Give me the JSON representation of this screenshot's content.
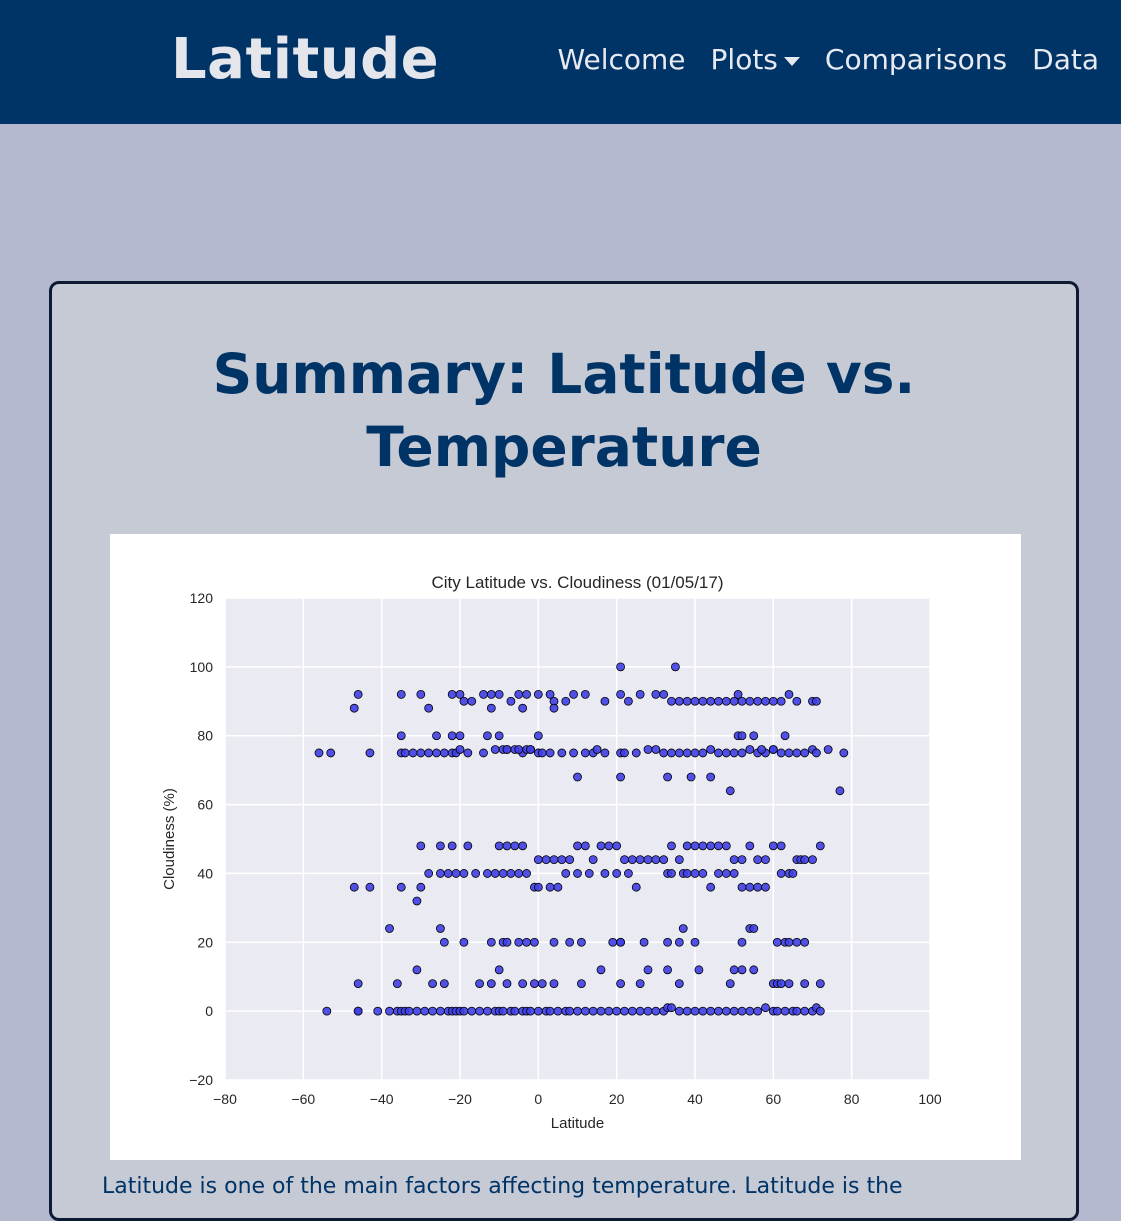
{
  "navbar": {
    "brand": "Latitude",
    "items": [
      {
        "label": "Welcome"
      },
      {
        "label": "Plots",
        "dropdown": true
      },
      {
        "label": "Comparisons"
      },
      {
        "label": "Data"
      }
    ]
  },
  "card": {
    "title": "Summary: Latitude vs.\nTemperature",
    "body_text": "Latitude is one of the main factors affecting temperature. Latitude is the"
  },
  "colors": {
    "navbar": "#003366",
    "page_background": "#b4b9d0",
    "card_background": "#c6cad4",
    "title": "#003366",
    "plot_background": "#eaeaf2",
    "marker_fill": "#3f3fe6"
  },
  "chart_data": {
    "type": "scatter",
    "title": "City Latitude vs. Cloudiness (01/05/17)",
    "xlabel": "Latitude",
    "ylabel": "Cloudiness (%)",
    "xlim": [
      -80,
      100
    ],
    "ylim": [
      -20,
      120
    ],
    "xticks": [
      -80,
      -60,
      -40,
      -20,
      0,
      20,
      40,
      60,
      80,
      100
    ],
    "yticks": [
      -20,
      0,
      20,
      40,
      60,
      80,
      100,
      120
    ],
    "grid": true,
    "x": [
      -54,
      -46,
      -46,
      -41,
      -38,
      -36,
      -35,
      -34,
      -33,
      -31,
      -29,
      -27,
      -25,
      -23,
      -22,
      -21,
      -20,
      -19,
      -17,
      -15,
      -13,
      -11,
      -10,
      -9,
      -7,
      -6,
      -4,
      -3,
      -2,
      0,
      2,
      3,
      5,
      7,
      8,
      10,
      12,
      14,
      16,
      18,
      20,
      22,
      24,
      26,
      28,
      30,
      32,
      33,
      34,
      36,
      38,
      40,
      42,
      44,
      46,
      48,
      50,
      52,
      54,
      56,
      58,
      60,
      61,
      63,
      65,
      66,
      68,
      70,
      71,
      72,
      -56,
      -53,
      -43,
      -35,
      -34,
      -32,
      -30,
      -28,
      -26,
      -24,
      -22,
      -21,
      -20,
      -18,
      -14,
      -11,
      -9,
      -8,
      -4,
      -2,
      0,
      1,
      3,
      6,
      9,
      12,
      14,
      15,
      17,
      21,
      22,
      25,
      28,
      30,
      32,
      34,
      36,
      38,
      40,
      42,
      44,
      46,
      48,
      50,
      52,
      54,
      56,
      58,
      60,
      62,
      64,
      66,
      68,
      70,
      71,
      74,
      78,
      -46,
      -35,
      -30,
      -22,
      -20,
      -19,
      -17,
      -14,
      -12,
      -10,
      -7,
      -5,
      -3,
      0,
      3,
      4,
      7,
      9,
      12,
      17,
      21,
      23,
      26,
      30,
      32,
      34,
      36,
      38,
      40,
      42,
      44,
      46,
      48,
      50,
      51,
      52,
      54,
      56,
      58,
      60,
      62,
      64,
      66,
      70,
      71,
      -35,
      -26,
      -22,
      -20,
      -13,
      -10,
      -8,
      -6,
      -5,
      -3,
      -2,
      0,
      10,
      21,
      33,
      39,
      44,
      49,
      51,
      52,
      55,
      57,
      60,
      63,
      77,
      -47,
      -43,
      -35,
      -30,
      -28,
      -25,
      -23,
      -21,
      -19,
      -16,
      -13,
      -11,
      -9,
      -7,
      -5,
      -3,
      -1,
      0,
      3,
      5,
      7,
      10,
      13,
      17,
      20,
      23,
      25,
      33,
      34,
      37,
      38,
      40,
      42,
      44,
      46,
      48,
      50,
      52,
      54,
      56,
      58,
      62,
      64,
      65,
      66,
      67,
      68,
      70,
      72,
      -38,
      -31,
      -25,
      -24,
      -19,
      -12,
      -9,
      -8,
      -5,
      -3,
      -1,
      4,
      8,
      11,
      19,
      21,
      21,
      27,
      33,
      36,
      37,
      40,
      52,
      54,
      55,
      61,
      63,
      64,
      66,
      68,
      -46,
      -36,
      -31,
      -27,
      -24,
      -15,
      -12,
      -10,
      -8,
      -4,
      -1,
      1,
      4,
      11,
      16,
      21,
      26,
      28,
      33,
      36,
      41,
      49,
      50,
      52,
      55,
      60,
      61,
      62,
      64,
      68,
      72,
      -30,
      -25,
      -22,
      -18,
      -10,
      -8,
      -6,
      -4,
      0,
      2,
      4,
      6,
      8,
      10,
      12,
      14,
      16,
      18,
      20,
      22,
      24,
      26,
      28,
      30,
      32,
      34,
      36,
      38,
      40,
      42,
      44,
      46,
      48,
      50,
      52,
      54,
      56,
      58,
      60,
      62,
      -47,
      -28,
      -12,
      -4,
      4,
      21,
      35
    ],
    "y": [
      0,
      0,
      0,
      0,
      0,
      0,
      0,
      0,
      0,
      0,
      0,
      0,
      0,
      0,
      0,
      0,
      0,
      0,
      0,
      0,
      0,
      0,
      0,
      0,
      0,
      0,
      0,
      0,
      0,
      0,
      0,
      0,
      0,
      0,
      0,
      0,
      0,
      0,
      0,
      0,
      0,
      0,
      0,
      0,
      0,
      0,
      0,
      1,
      1,
      0,
      0,
      0,
      0,
      0,
      0,
      0,
      0,
      0,
      0,
      0,
      1,
      0,
      0,
      0,
      0,
      0,
      0,
      0,
      1,
      0,
      75,
      75,
      75,
      75,
      75,
      75,
      75,
      75,
      75,
      75,
      75,
      75,
      76,
      75,
      75,
      76,
      76,
      76,
      75,
      76,
      75,
      75,
      75,
      75,
      75,
      75,
      75,
      76,
      75,
      75,
      75,
      75,
      76,
      76,
      75,
      75,
      75,
      75,
      75,
      75,
      76,
      75,
      75,
      75,
      75,
      76,
      75,
      75,
      76,
      75,
      75,
      75,
      75,
      76,
      75,
      76,
      75,
      92,
      92,
      92,
      92,
      92,
      90,
      90,
      92,
      92,
      92,
      90,
      92,
      92,
      92,
      92,
      90,
      90,
      92,
      92,
      90,
      92,
      90,
      92,
      92,
      92,
      90,
      90,
      90,
      90,
      90,
      90,
      90,
      90,
      90,
      92,
      90,
      90,
      90,
      90,
      90,
      90,
      92,
      90,
      90,
      90,
      80,
      80,
      80,
      80,
      80,
      80,
      76,
      76,
      76,
      76,
      76,
      80,
      68,
      68,
      68,
      68,
      68,
      64,
      80,
      80,
      80,
      76,
      76,
      80,
      64,
      36,
      36,
      36,
      36,
      40,
      40,
      40,
      40,
      40,
      40,
      40,
      40,
      40,
      40,
      40,
      40,
      36,
      36,
      36,
      36,
      40,
      40,
      40,
      40,
      40,
      40,
      36,
      40,
      40,
      40,
      40,
      40,
      40,
      36,
      40,
      40,
      40,
      36,
      36,
      36,
      36,
      40,
      40,
      40,
      44,
      44,
      44,
      44,
      48,
      24,
      32,
      24,
      20,
      20,
      20,
      20,
      20,
      20,
      20,
      20,
      20,
      20,
      20,
      20,
      20,
      20,
      20,
      20,
      20,
      24,
      20,
      20,
      24,
      24,
      20,
      20,
      20,
      20,
      20,
      8,
      8,
      12,
      8,
      8,
      8,
      8,
      12,
      8,
      8,
      8,
      8,
      8,
      8,
      12,
      8,
      8,
      12,
      12,
      8,
      12,
      8,
      12,
      12,
      12,
      8,
      8,
      8,
      8,
      8,
      8,
      48,
      48,
      48,
      48,
      48,
      48,
      48,
      48,
      44,
      44,
      44,
      44,
      44,
      48,
      48,
      44,
      48,
      48,
      48,
      44,
      44,
      44,
      44,
      44,
      44,
      48,
      44,
      48,
      48,
      48,
      48,
      48,
      48,
      44,
      44,
      48,
      44,
      44,
      48,
      48,
      88,
      88,
      88,
      88,
      88,
      100,
      100
    ]
  }
}
